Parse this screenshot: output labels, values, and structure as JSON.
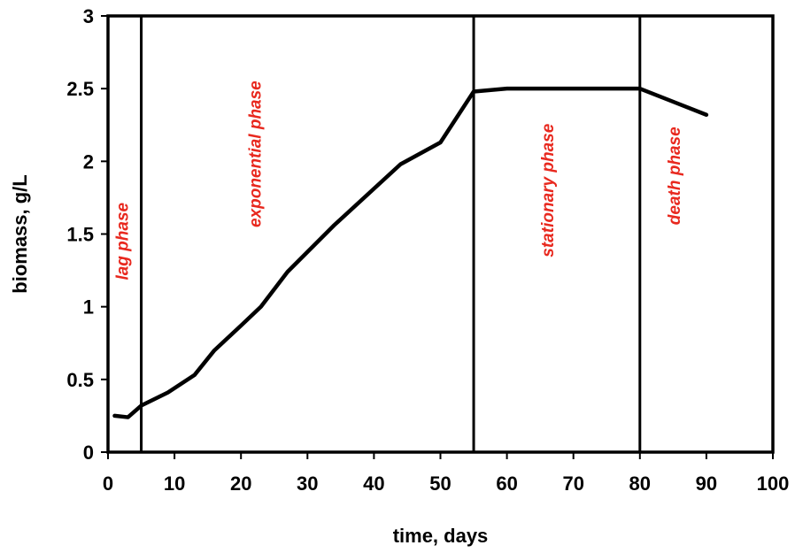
{
  "chart_data": {
    "type": "line",
    "xlabel": "time, days",
    "ylabel": "biomass, g/L",
    "xlim": [
      0,
      100
    ],
    "ylim": [
      0,
      3
    ],
    "x_ticks": [
      "0",
      "10",
      "20",
      "30",
      "40",
      "50",
      "60",
      "70",
      "80",
      "90",
      "100"
    ],
    "y_ticks": [
      "0",
      "0.5",
      "1",
      "1.5",
      "2",
      "2.5",
      "3"
    ],
    "grid": false,
    "series": [
      {
        "x": [
          1,
          3,
          5,
          9,
          13,
          16,
          20,
          23,
          27,
          34,
          44,
          50,
          55,
          60,
          70,
          80,
          90
        ],
        "y": [
          0.25,
          0.24,
          0.32,
          0.41,
          0.53,
          0.7,
          0.87,
          1.0,
          1.24,
          1.56,
          1.98,
          2.13,
          2.48,
          2.5,
          2.5,
          2.5,
          2.32
        ],
        "color": "#000000"
      }
    ],
    "phase_boundaries": [
      5,
      55,
      80
    ],
    "phase_labels": [
      {
        "text": "lag phase",
        "x": 3,
        "y": 1.45
      },
      {
        "text": "exponential phase",
        "x": 23,
        "y": 2.05
      },
      {
        "text": "stationary phase",
        "x": 67,
        "y": 1.8
      },
      {
        "text": "death phase",
        "x": 86,
        "y": 1.9
      }
    ],
    "phase_label_color": "#e8281e"
  }
}
